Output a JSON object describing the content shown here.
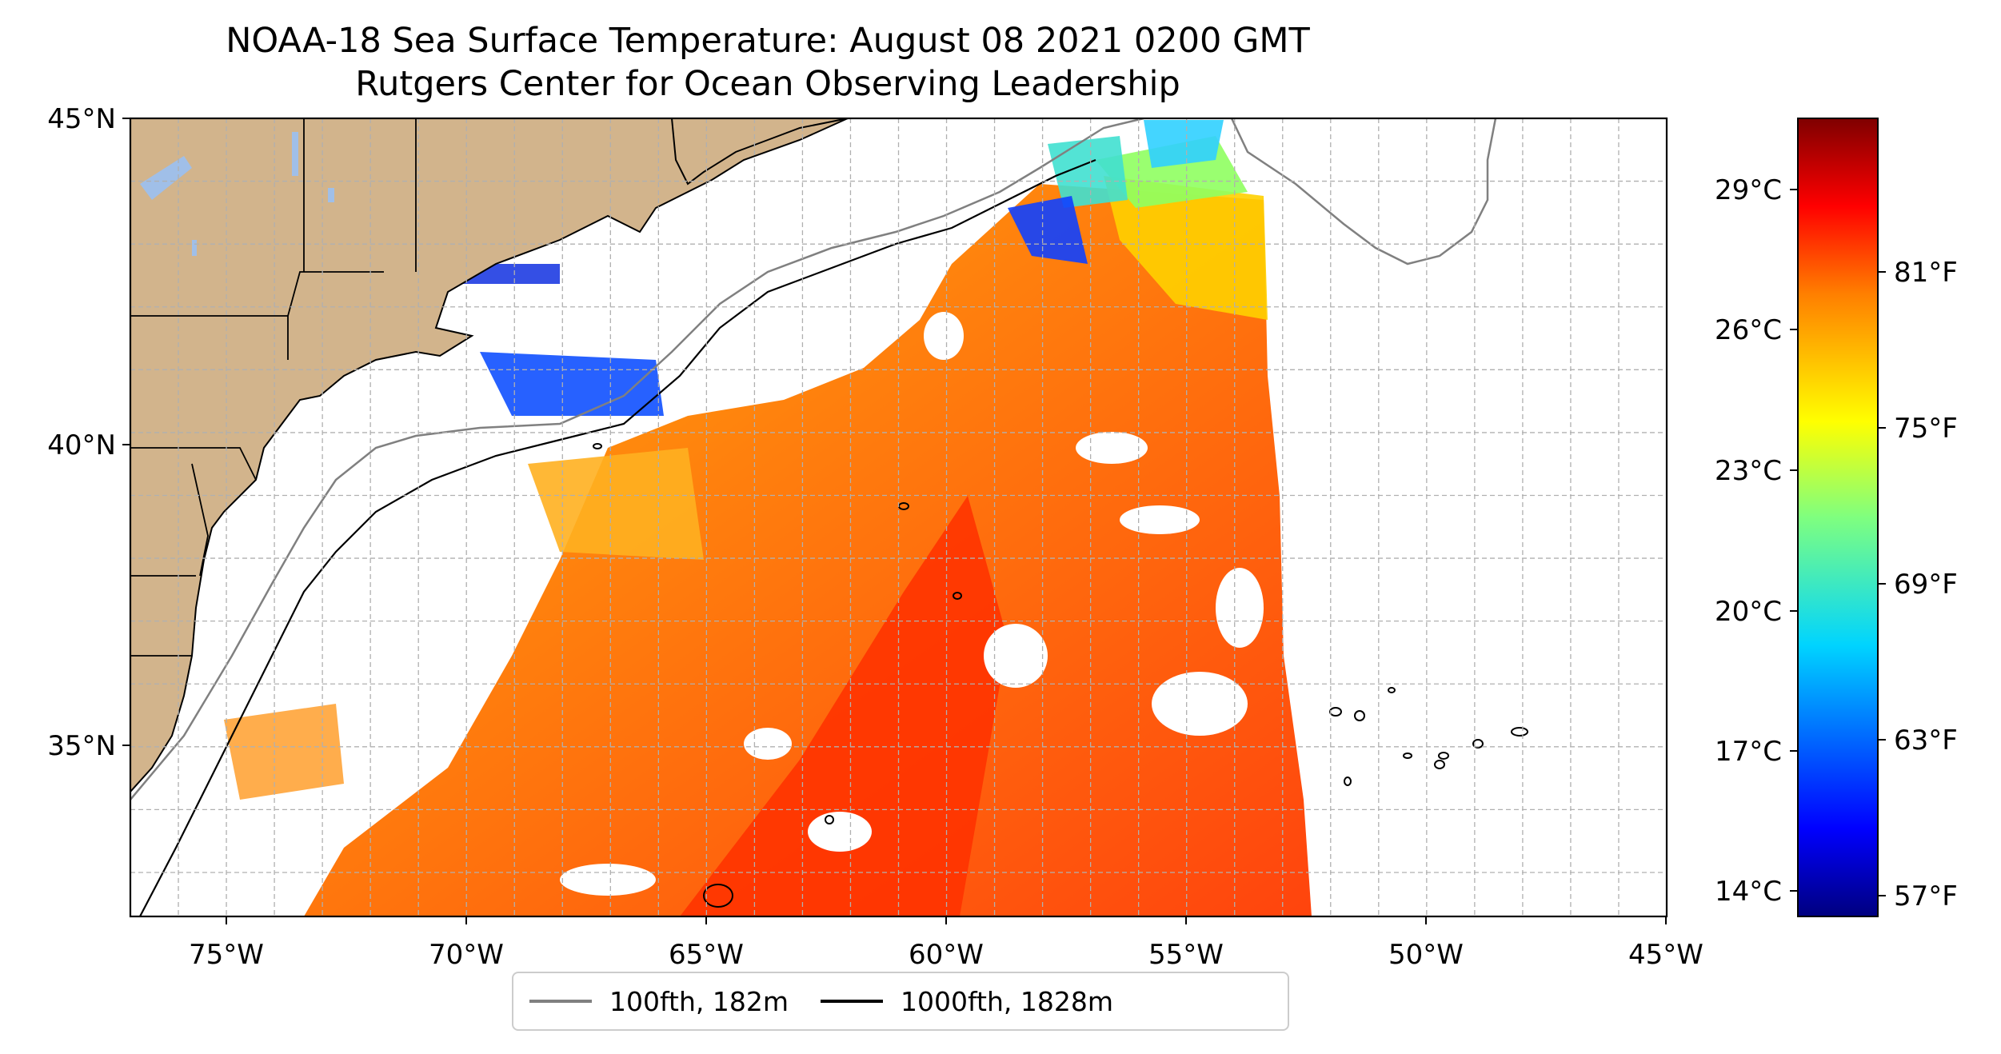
{
  "title": {
    "line1": "NOAA-18 Sea Surface Temperature: August 08 2021 0200 GMT",
    "line2": "Rutgers Center for Ocean Observing Leadership"
  },
  "map": {
    "lon_range": [
      -77,
      -45
    ],
    "lat_range": [
      32.3,
      45
    ],
    "lon_ticks": [
      "75°W",
      "70°W",
      "65°W",
      "60°W",
      "55°W",
      "50°W",
      "45°W"
    ],
    "lat_ticks": [
      "35°N",
      "40°N",
      "45°N"
    ],
    "grid": "dashed",
    "land_color": "#d2b48c",
    "lake_color": "#a0bfe8"
  },
  "colorbar": {
    "celsius_ticks": [
      "14°C",
      "17°C",
      "20°C",
      "23°C",
      "26°C",
      "29°C"
    ],
    "fahrenheit_ticks": [
      "57°F",
      "63°F",
      "69°F",
      "75°F",
      "81°F"
    ],
    "colormap": "jet",
    "colors": [
      "#00007f",
      "#0000ff",
      "#007fff",
      "#00ffff",
      "#7fff7f",
      "#ffff00",
      "#ff7f00",
      "#ff0000",
      "#7f0000"
    ]
  },
  "legend": {
    "items": [
      {
        "label": "100fth, 182m",
        "color": "#808080"
      },
      {
        "label": "1000fth, 1828m",
        "color": "#000000"
      }
    ]
  }
}
